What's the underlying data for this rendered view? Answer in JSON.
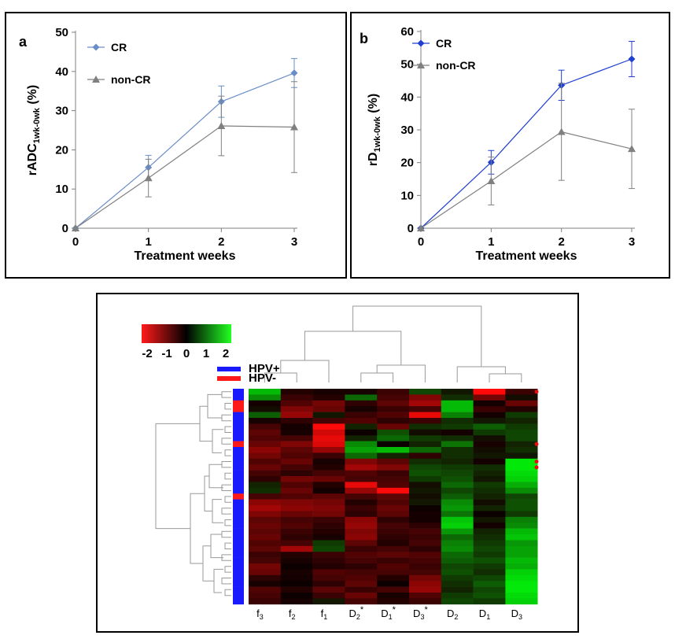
{
  "chart_data": [
    {
      "type": "line",
      "panel_label": "a",
      "xlabel": "Treatment weeks",
      "ylabel_main": "rADC",
      "ylabel_sub": "1wk-0wk",
      "ylabel_unit": " (%)",
      "x": [
        0,
        1,
        2,
        3
      ],
      "xlim": [
        0,
        3
      ],
      "ylim": [
        0,
        50
      ],
      "yticks": [
        0,
        10,
        20,
        30,
        40,
        50
      ],
      "grid": false,
      "legend_position": "top-left",
      "series": [
        {
          "name": "CR",
          "marker": "diamond",
          "color": "#6a8dc7",
          "values": [
            0,
            15.5,
            32.3,
            39.6
          ],
          "err": [
            0,
            3.1,
            4.0,
            3.7
          ]
        },
        {
          "name": "non-CR",
          "marker": "triangle",
          "color": "#808080",
          "values": [
            0,
            12.8,
            26.1,
            25.8
          ],
          "err": [
            0,
            4.8,
            7.6,
            11.6
          ]
        }
      ]
    },
    {
      "type": "line",
      "panel_label": "b",
      "xlabel": "Treatment weeks",
      "ylabel_main": "rD",
      "ylabel_sub": "1wk-0wk",
      "ylabel_unit": " (%)",
      "x": [
        0,
        1,
        2,
        3
      ],
      "xlim": [
        0,
        3
      ],
      "ylim": [
        0,
        60
      ],
      "yticks": [
        0,
        10,
        20,
        30,
        40,
        50,
        60
      ],
      "grid": false,
      "legend_position": "top-left",
      "series": [
        {
          "name": "CR",
          "marker": "diamond",
          "color": "#1f3fd0",
          "values": [
            0,
            20.1,
            43.6,
            51.6
          ],
          "err": [
            0,
            3.6,
            4.6,
            5.4
          ]
        },
        {
          "name": "non-CR",
          "marker": "triangle",
          "color": "#808080",
          "values": [
            0,
            14.4,
            29.4,
            24.2
          ],
          "err": [
            0,
            7.3,
            14.8,
            12.1
          ]
        }
      ]
    },
    {
      "type": "heatmap",
      "colorbar": {
        "ticks": [
          "-2",
          "-1",
          "0",
          "1",
          "2"
        ],
        "low_color": "#ff1a1a",
        "mid_color": "#000000",
        "high_color": "#22ff22"
      },
      "legend": [
        {
          "name": "HPV+",
          "color": "#1a1aff"
        },
        {
          "name": "HPV-",
          "color": "#ff1a1a"
        }
      ],
      "columns": [
        {
          "label": "f",
          "sub": "3",
          "star": ""
        },
        {
          "label": "f",
          "sub": "2",
          "star": ""
        },
        {
          "label": "f",
          "sub": "1",
          "star": ""
        },
        {
          "label": "D",
          "sub": "2",
          "star": "*"
        },
        {
          "label": "D",
          "sub": "1",
          "star": "*"
        },
        {
          "label": "D",
          "sub": "3",
          "star": "*"
        },
        {
          "label": "D",
          "sub": "2",
          "star": ""
        },
        {
          "label": "D",
          "sub": "1",
          "star": ""
        },
        {
          "label": "D",
          "sub": "3",
          "star": ""
        }
      ],
      "hpv_status": [
        "+",
        "+",
        "-",
        "-",
        "+",
        "+",
        "+",
        "+",
        "+",
        "-",
        "+",
        "+",
        "+",
        "+",
        "+",
        "+",
        "+",
        "+",
        "-",
        "+",
        "+",
        "+",
        "+",
        "+",
        "+",
        "+",
        "+",
        "+",
        "+",
        "+",
        "+",
        "+",
        "+",
        "+",
        "+",
        "+",
        "+"
      ],
      "marked_rows": [
        0,
        9,
        12,
        13
      ],
      "values": [
        [
          1.6,
          -0.3,
          -0.2,
          -0.2,
          -0.5,
          0.6,
          0.2,
          -2.2,
          -0.5
        ],
        [
          1.2,
          -0.5,
          -0.3,
          0.9,
          -0.6,
          -1.1,
          0.4,
          -1.0,
          0.1
        ],
        [
          0.0,
          -0.7,
          -1.0,
          -0.4,
          -0.8,
          -1.4,
          1.6,
          0.0,
          -0.9
        ],
        [
          0.1,
          -1.1,
          -0.9,
          -0.2,
          -0.5,
          -0.6,
          1.6,
          -0.5,
          -0.3
        ],
        [
          0.8,
          -1.3,
          0.2,
          -0.5,
          -0.7,
          -2.0,
          1.1,
          0.0,
          0.5
        ],
        [
          -0.2,
          -0.4,
          -0.6,
          -0.7,
          -0.4,
          -0.5,
          0.4,
          0.2,
          0.3
        ],
        [
          -0.6,
          0.0,
          -2.2,
          0.3,
          -0.9,
          0.4,
          0.5,
          0.8,
          0.5
        ],
        [
          -0.8,
          -0.2,
          -1.8,
          -0.1,
          0.7,
          0.1,
          0.0,
          0.5,
          0.6
        ],
        [
          -0.7,
          -0.6,
          -2.0,
          0.3,
          0.9,
          0.5,
          0.4,
          0.1,
          0.6
        ],
        [
          -0.9,
          -1.1,
          -1.9,
          1.2,
          -0.1,
          0.3,
          1.0,
          -0.2,
          0.3
        ],
        [
          -1.2,
          -0.8,
          -1.3,
          1.4,
          1.6,
          0.9,
          0.4,
          0.1,
          0.4
        ],
        [
          -1.0,
          -0.7,
          -0.5,
          0.9,
          0.3,
          -0.4,
          0.4,
          0.2,
          0.2
        ],
        [
          -0.7,
          -0.9,
          -0.2,
          -1.1,
          -0.8,
          0.4,
          0.3,
          0.0,
          2.0
        ],
        [
          -0.9,
          -0.6,
          -0.3,
          -1.4,
          -1.1,
          0.6,
          0.5,
          0.4,
          2.0
        ],
        [
          -0.6,
          -0.4,
          -0.6,
          -0.7,
          -0.5,
          0.7,
          0.6,
          0.3,
          1.9
        ],
        [
          -0.4,
          -1.0,
          -0.9,
          -0.6,
          -0.6,
          0.5,
          0.7,
          0.2,
          1.8
        ],
        [
          0.3,
          -0.7,
          -0.3,
          -2.0,
          -0.7,
          0.1,
          0.9,
          0.5,
          1.5
        ],
        [
          0.4,
          -0.9,
          0.0,
          -1.3,
          -2.2,
          0.2,
          0.6,
          0.4,
          1.2
        ],
        [
          -0.6,
          -0.7,
          -0.8,
          -0.6,
          -0.8,
          0.1,
          0.8,
          0.3,
          0.6
        ],
        [
          -1.2,
          -1.1,
          -1.0,
          -0.3,
          -0.7,
          0.2,
          1.2,
          0.1,
          0.7
        ],
        [
          -1.4,
          -1.2,
          -1.1,
          -0.5,
          -0.9,
          -0.1,
          1.3,
          0.3,
          0.7
        ],
        [
          -1.1,
          -0.9,
          -1.0,
          -0.4,
          -0.8,
          0.0,
          1.0,
          -0.1,
          0.5
        ],
        [
          -0.8,
          -0.6,
          -0.5,
          -1.2,
          -0.4,
          0.0,
          1.7,
          0.2,
          1.1
        ],
        [
          -0.9,
          -0.7,
          -0.4,
          -1.3,
          -0.6,
          -0.4,
          1.8,
          0.0,
          1.2
        ],
        [
          -0.8,
          -0.5,
          -0.3,
          -1.1,
          -0.5,
          -0.6,
          1.3,
          0.3,
          1.6
        ],
        [
          -0.9,
          -0.4,
          -0.2,
          -1.2,
          -0.4,
          -0.5,
          0.9,
          0.4,
          1.7
        ],
        [
          -0.7,
          -0.6,
          0.5,
          -0.8,
          -0.3,
          -0.6,
          1.1,
          0.5,
          1.3
        ],
        [
          -0.8,
          -1.4,
          0.6,
          -0.5,
          -0.6,
          -0.4,
          1.2,
          0.6,
          1.4
        ],
        [
          -0.5,
          -0.3,
          -0.5,
          -0.7,
          -0.8,
          -0.7,
          0.9,
          0.5,
          1.4
        ],
        [
          -0.6,
          -0.2,
          -0.4,
          -0.6,
          -0.5,
          -0.6,
          0.8,
          0.7,
          1.6
        ],
        [
          -1.0,
          -0.1,
          -0.3,
          -0.4,
          -0.7,
          -0.5,
          0.6,
          0.5,
          1.5
        ],
        [
          -0.9,
          -0.2,
          -0.7,
          -0.6,
          -0.6,
          -0.6,
          0.7,
          0.4,
          1.8
        ],
        [
          -0.4,
          0.0,
          -0.6,
          -0.7,
          -0.3,
          -1.0,
          0.5,
          0.6,
          1.9
        ],
        [
          -0.2,
          -0.1,
          -0.4,
          -0.8,
          -0.1,
          -1.2,
          0.4,
          0.8,
          2.0
        ],
        [
          -0.7,
          -0.3,
          -0.8,
          -0.5,
          -0.6,
          -1.3,
          0.3,
          0.6,
          2.0
        ],
        [
          -0.6,
          -0.1,
          -0.5,
          -0.9,
          -0.2,
          -0.7,
          0.5,
          0.7,
          1.9
        ],
        [
          -0.5,
          -0.2,
          0.2,
          -0.6,
          -0.3,
          -0.5,
          0.6,
          0.5,
          1.8
        ]
      ]
    }
  ]
}
